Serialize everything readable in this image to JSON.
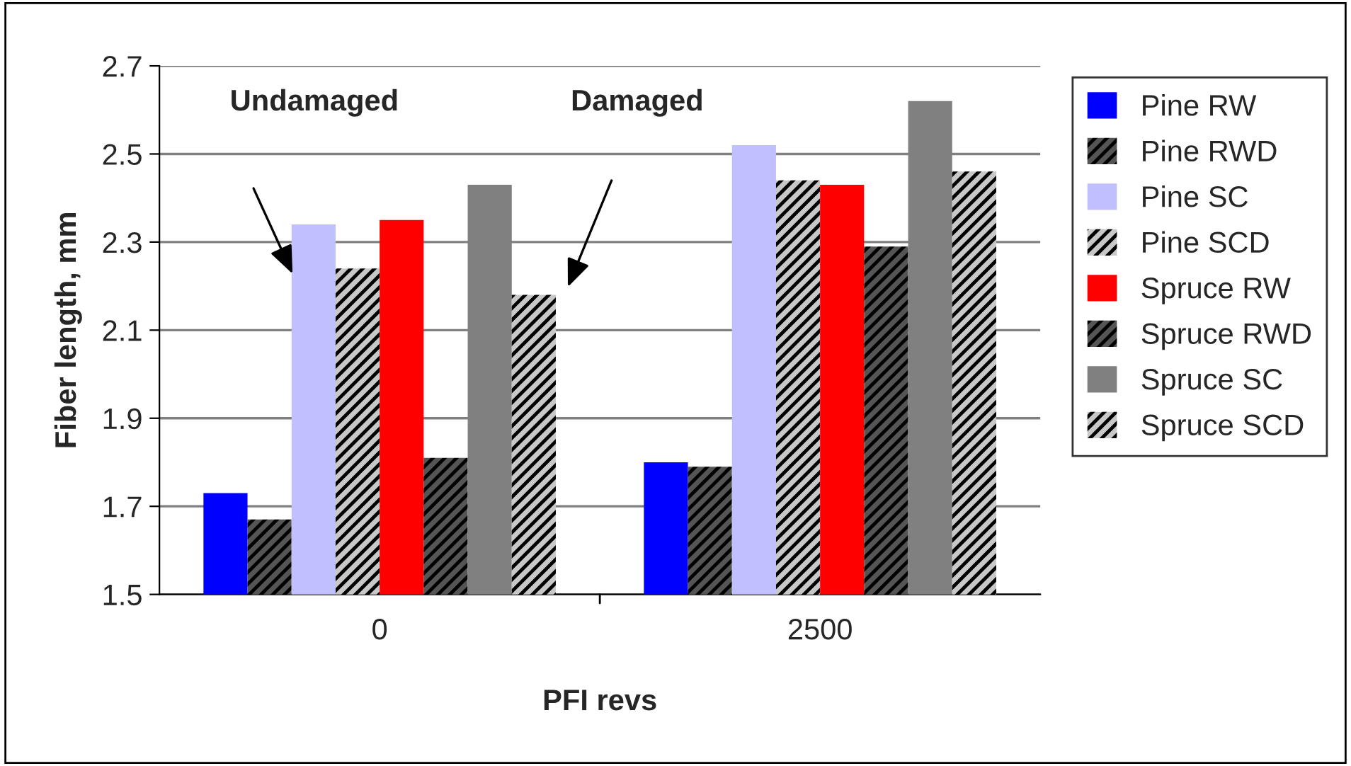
{
  "chart_data": {
    "type": "bar",
    "xlabel": "PFI revs",
    "ylabel": "Fiber length, mm",
    "categories": [
      "0",
      "2500"
    ],
    "series": [
      {
        "name": "Pine RW",
        "color": "#0000ff",
        "values": [
          1.73,
          1.8
        ]
      },
      {
        "name": "Pine RWD",
        "color": "#000000",
        "values": [
          1.67,
          1.79
        ]
      },
      {
        "name": "Pine SC",
        "color": "#c0c0ff",
        "values": [
          2.34,
          2.52
        ]
      },
      {
        "name": "Pine SCD",
        "color": "#000000",
        "values": [
          2.24,
          2.44
        ]
      },
      {
        "name": "Spruce RW",
        "color": "#ff0000",
        "values": [
          2.35,
          2.43
        ]
      },
      {
        "name": "Spruce RWD",
        "color": "#000000",
        "values": [
          1.81,
          2.29
        ]
      },
      {
        "name": "Spruce SC",
        "color": "#808080",
        "values": [
          2.43,
          2.62
        ]
      },
      {
        "name": "Spruce SCD",
        "color": "#000000",
        "values": [
          2.18,
          2.46
        ]
      }
    ],
    "ylim": [
      1.5,
      2.7
    ],
    "yticks": [
      1.5,
      1.7,
      1.9,
      2.1,
      2.3,
      2.5,
      2.7
    ],
    "grid": "y",
    "legend": "right",
    "annotations": [
      "Undamaged",
      "Damaged"
    ]
  }
}
